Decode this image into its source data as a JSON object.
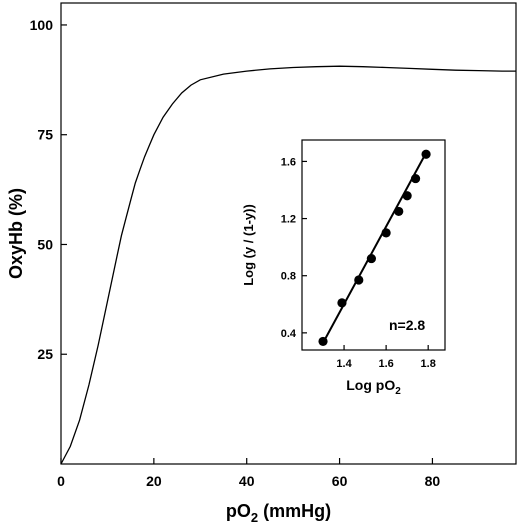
{
  "chart_data": [
    {
      "type": "line",
      "title": "",
      "xlabel": "pO",
      "xlabel_sub": "2",
      "xlabel_suffix": " (mmHg)",
      "ylabel": "OxyHb (%)",
      "xlim": [
        0,
        98
      ],
      "ylim": [
        0,
        105
      ],
      "xticks": [
        0,
        20,
        40,
        60,
        80
      ],
      "yticks": [
        25,
        50,
        75,
        100
      ],
      "grid": false,
      "series": [
        {
          "x": [
            0,
            2,
            4,
            6,
            8,
            10,
            12,
            13,
            14,
            15,
            16,
            17,
            18,
            19,
            20,
            22,
            24,
            26,
            28,
            30,
            35,
            40,
            45,
            50,
            55,
            60,
            65,
            70,
            75,
            80,
            85,
            90,
            95,
            98
          ],
          "y": [
            0,
            4,
            10,
            18,
            27,
            37,
            47,
            52,
            56,
            60,
            64,
            67,
            70,
            72.5,
            75,
            79,
            82,
            84.5,
            86.3,
            87.5,
            88.8,
            89.5,
            90.0,
            90.3,
            90.5,
            90.6,
            90.5,
            90.3,
            90.1,
            89.9,
            89.7,
            89.6,
            89.5,
            89.5
          ]
        }
      ]
    },
    {
      "type": "scatter",
      "title": "",
      "xlabel": "Log pO",
      "xlabel_sub": "2",
      "ylabel": "Log (y / (1-y))",
      "xlim": [
        1.2,
        1.88
      ],
      "ylim": [
        0.28,
        1.75
      ],
      "xticks": [
        1.4,
        1.6,
        1.8
      ],
      "yticks": [
        0.4,
        0.8,
        1.2,
        1.6
      ],
      "annotation": "n=2.8",
      "grid": false,
      "series": [
        {
          "x": [
            1.3,
            1.39,
            1.47,
            1.53,
            1.6,
            1.66,
            1.7,
            1.74,
            1.79
          ],
          "y": [
            0.34,
            0.61,
            0.77,
            0.92,
            1.1,
            1.25,
            1.36,
            1.48,
            1.65
          ]
        }
      ],
      "fit_line": {
        "x": [
          1.3,
          1.79
        ],
        "y": [
          0.33,
          1.66
        ]
      }
    }
  ]
}
